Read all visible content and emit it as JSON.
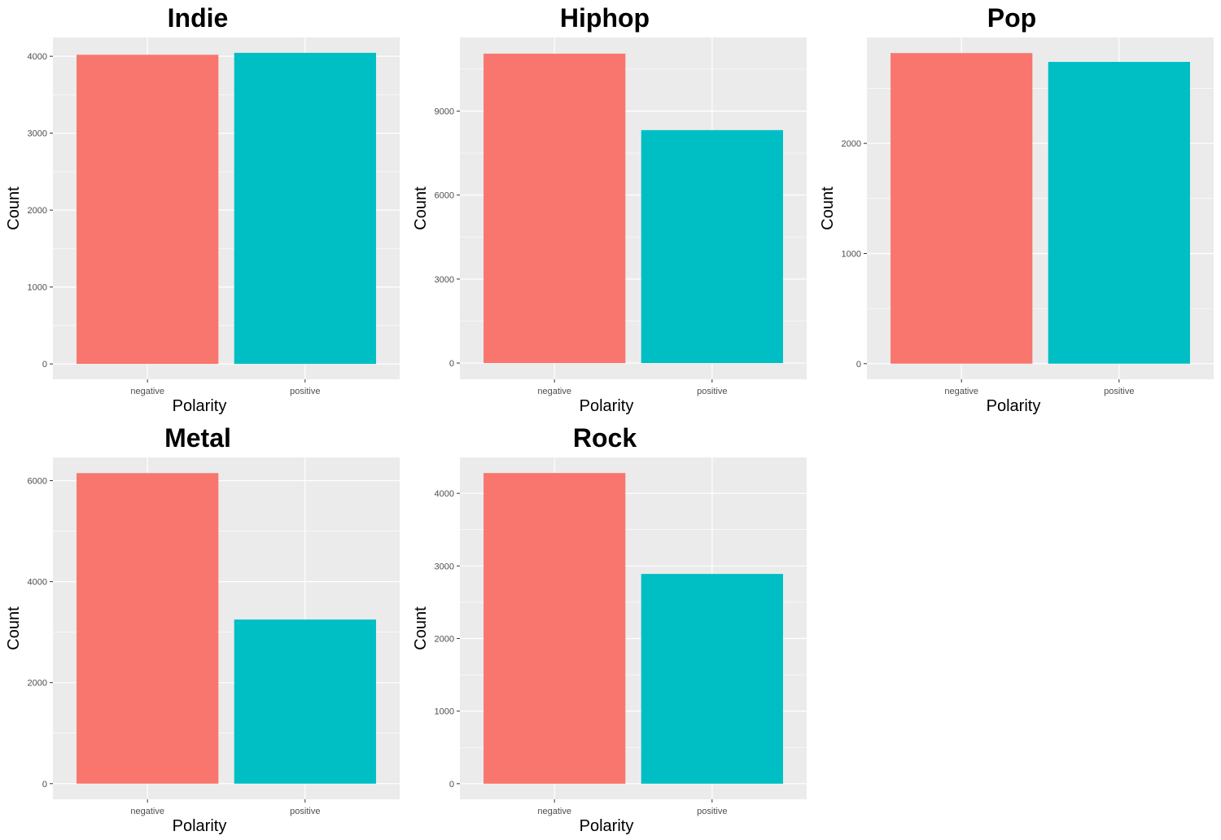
{
  "colors": {
    "negative": "#F8766D",
    "positive": "#00BFC4",
    "panel_background": "#EBEBEB",
    "grid": "#FFFFFF",
    "tick_text": "#4D4D4D"
  },
  "chart_data": [
    {
      "type": "bar",
      "title": "Indie",
      "xlabel": "Polarity",
      "ylabel": "Count",
      "categories": [
        "negative",
        "positive"
      ],
      "values": [
        4020,
        4045
      ],
      "ylim": [
        -200,
        4245
      ],
      "yticks": [
        0,
        1000,
        2000,
        3000,
        4000
      ],
      "grid": true,
      "legend": "none"
    },
    {
      "type": "bar",
      "title": "Hiphop",
      "xlabel": "Polarity",
      "ylabel": "Count",
      "categories": [
        "negative",
        "positive"
      ],
      "values": [
        11050,
        8320
      ],
      "ylim": [
        -580,
        11630
      ],
      "yticks": [
        0,
        3000,
        6000,
        9000
      ],
      "grid": true,
      "legend": "none"
    },
    {
      "type": "bar",
      "title": "Pop",
      "xlabel": "Polarity",
      "ylabel": "Count",
      "categories": [
        "negative",
        "positive"
      ],
      "values": [
        2820,
        2740
      ],
      "ylim": [
        -142,
        2962
      ],
      "yticks": [
        0,
        1000,
        2000
      ],
      "grid": true,
      "legend": "none"
    },
    {
      "type": "bar",
      "title": "Metal",
      "xlabel": "Polarity",
      "ylabel": "Count",
      "categories": [
        "negative",
        "positive"
      ],
      "values": [
        6150,
        3250
      ],
      "ylim": [
        -310,
        6460
      ],
      "yticks": [
        0,
        2000,
        4000,
        6000
      ],
      "grid": true,
      "legend": "none"
    },
    {
      "type": "bar",
      "title": "Rock",
      "xlabel": "Polarity",
      "ylabel": "Count",
      "categories": [
        "negative",
        "positive"
      ],
      "values": [
        4280,
        2890
      ],
      "ylim": [
        -215,
        4495
      ],
      "yticks": [
        0,
        1000,
        2000,
        3000,
        4000
      ],
      "grid": true,
      "legend": "none"
    }
  ]
}
